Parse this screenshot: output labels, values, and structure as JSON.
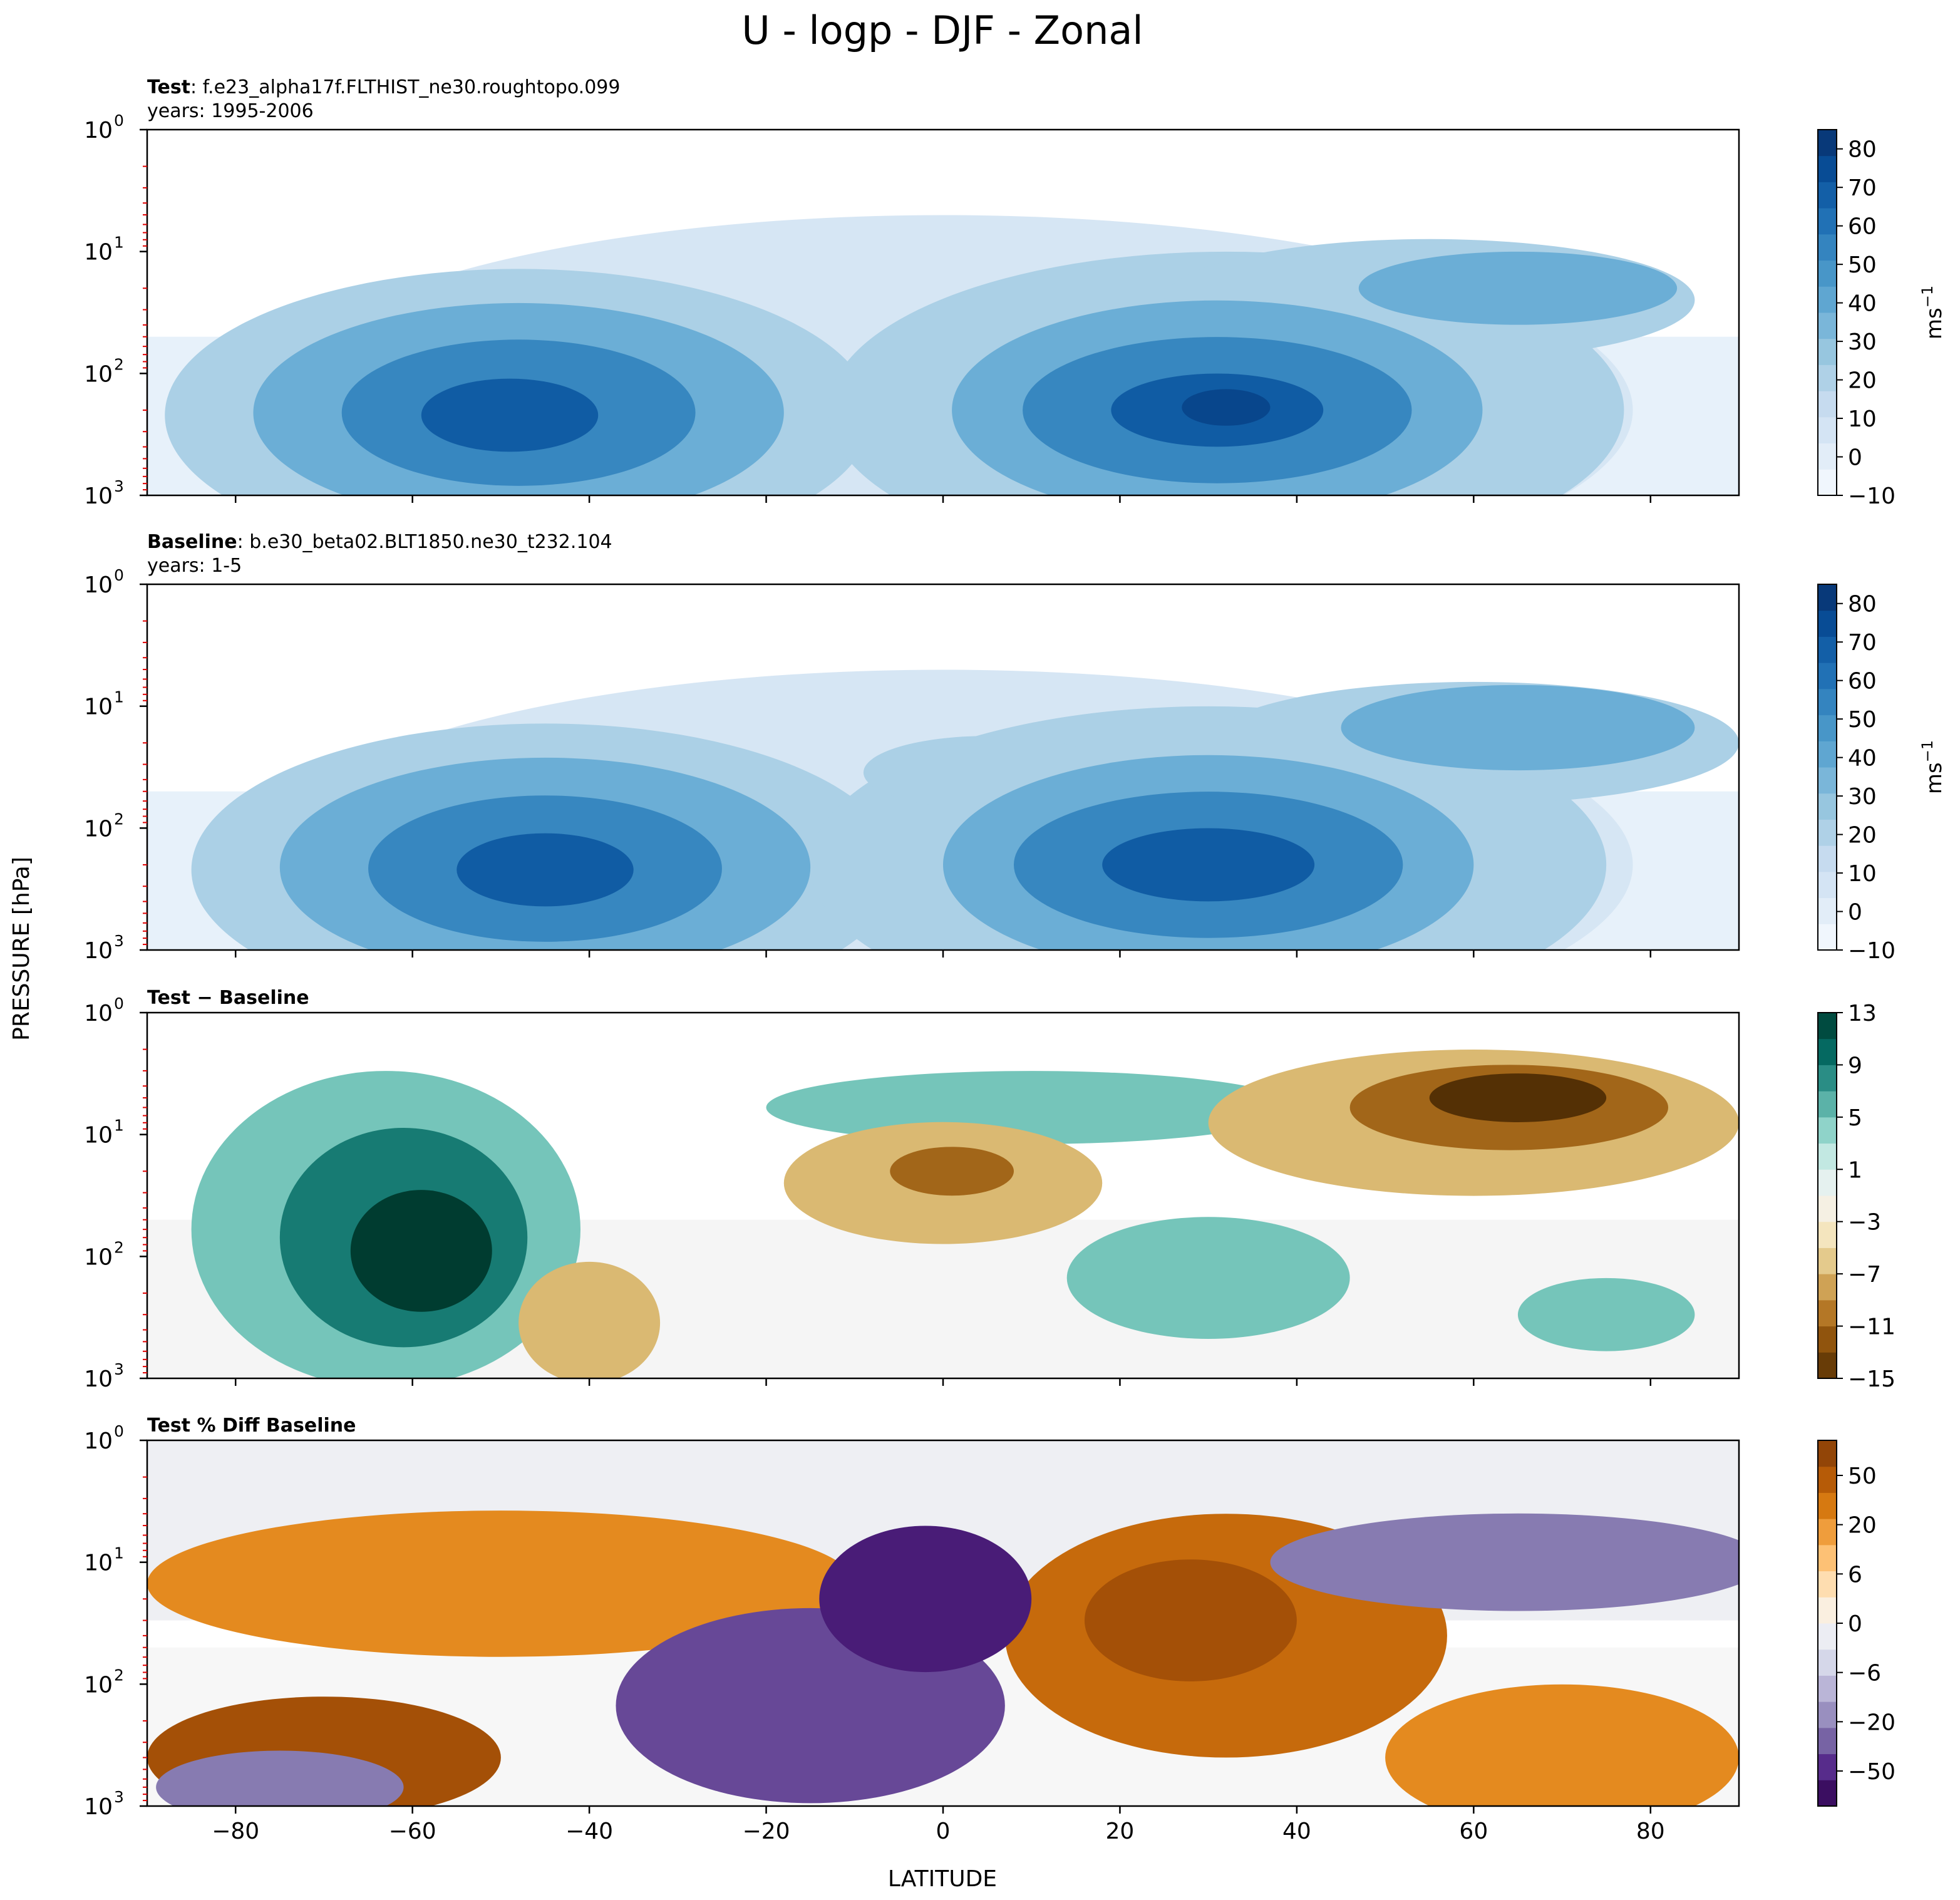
{
  "figure": {
    "title": "U - logp - DJF - Zonal",
    "xlabel": "LATITUDE",
    "ylabel": "PRESSURE [hPa]"
  },
  "chart_data": [
    {
      "type": "contour",
      "panel": "test",
      "title_bold": "Test",
      "title_rest": ": f.e23_alpha17f.FLTHIST_ne30.roughtopo.099",
      "subtitle": "years: 1995-2006",
      "xlim": [
        -90,
        90
      ],
      "ylim": [
        1000,
        1
      ],
      "yscale": "log",
      "xticks": [
        "−80",
        "−60",
        "−40",
        "−20",
        "0",
        "20",
        "40",
        "60",
        "80"
      ],
      "yticks": [
        {
          "base": "10",
          "exp": "0"
        },
        {
          "base": "10",
          "exp": "1"
        },
        {
          "base": "10",
          "exp": "2"
        },
        {
          "base": "10",
          "exp": "3"
        }
      ],
      "colorbar": {
        "ticks": [
          "80",
          "70",
          "60",
          "50",
          "40",
          "30",
          "20",
          "10",
          "0",
          "−10"
        ],
        "range": [
          -10,
          85
        ],
        "label_base": "ms",
        "label_exp": "−1",
        "cmap": "Blues"
      },
      "contours": [
        {
          "level": 2,
          "lat": 0,
          "p": 200,
          "rx": 78,
          "ry": 1.6
        },
        {
          "level": 4,
          "lat": -48,
          "p": 220,
          "rx": 40,
          "ry": 1.2
        },
        {
          "level": 4,
          "lat": 32,
          "p": 200,
          "rx": 45,
          "ry": 1.3
        },
        {
          "level": 4,
          "lat": 55,
          "p": 25,
          "rx": 30,
          "ry": 0.5
        },
        {
          "level": 6,
          "lat": -48,
          "p": 210,
          "rx": 30,
          "ry": 0.9
        },
        {
          "level": 6,
          "lat": 31,
          "p": 200,
          "rx": 30,
          "ry": 0.9
        },
        {
          "level": 6,
          "lat": 65,
          "p": 20,
          "rx": 18,
          "ry": 0.3
        },
        {
          "level": 8,
          "lat": -48,
          "p": 210,
          "rx": 20,
          "ry": 0.6
        },
        {
          "level": 8,
          "lat": 31,
          "p": 200,
          "rx": 22,
          "ry": 0.6
        },
        {
          "level": 10,
          "lat": -49,
          "p": 220,
          "rx": 10,
          "ry": 0.3
        },
        {
          "level": 10,
          "lat": 31,
          "p": 200,
          "rx": 12,
          "ry": 0.3
        },
        {
          "level": 11,
          "lat": 32,
          "p": 190,
          "rx": 5,
          "ry": 0.15
        }
      ]
    },
    {
      "type": "contour",
      "panel": "baseline",
      "title_bold": "Baseline",
      "title_rest": ": b.e30_beta02.BLT1850.ne30_t232.104",
      "subtitle": "years: 1-5",
      "xlim": [
        -90,
        90
      ],
      "ylim": [
        1000,
        1
      ],
      "yscale": "log",
      "xticks": [
        "−80",
        "−60",
        "−40",
        "−20",
        "0",
        "20",
        "40",
        "60",
        "80"
      ],
      "yticks": [
        {
          "base": "10",
          "exp": "0"
        },
        {
          "base": "10",
          "exp": "1"
        },
        {
          "base": "10",
          "exp": "2"
        },
        {
          "base": "10",
          "exp": "3"
        }
      ],
      "colorbar": {
        "ticks": [
          "80",
          "70",
          "60",
          "50",
          "40",
          "30",
          "20",
          "10",
          "0",
          "−10"
        ],
        "range": [
          -10,
          85
        ],
        "label_base": "ms",
        "label_exp": "−1",
        "cmap": "Blues"
      },
      "contours": [
        {
          "level": 2,
          "lat": 0,
          "p": 200,
          "rx": 78,
          "ry": 1.6
        },
        {
          "level": 4,
          "lat": -45,
          "p": 220,
          "rx": 40,
          "ry": 1.2
        },
        {
          "level": 4,
          "lat": 30,
          "p": 200,
          "rx": 45,
          "ry": 1.3
        },
        {
          "level": 4,
          "lat": 60,
          "p": 20,
          "rx": 30,
          "ry": 0.5
        },
        {
          "level": 4,
          "lat": 5,
          "p": 35,
          "rx": 14,
          "ry": 0.3
        },
        {
          "level": 6,
          "lat": -45,
          "p": 210,
          "rx": 30,
          "ry": 0.9
        },
        {
          "level": 6,
          "lat": 30,
          "p": 200,
          "rx": 30,
          "ry": 0.9
        },
        {
          "level": 6,
          "lat": 65,
          "p": 15,
          "rx": 20,
          "ry": 0.35
        },
        {
          "level": 8,
          "lat": -45,
          "p": 215,
          "rx": 20,
          "ry": 0.6
        },
        {
          "level": 8,
          "lat": 30,
          "p": 200,
          "rx": 22,
          "ry": 0.6
        },
        {
          "level": 10,
          "lat": -45,
          "p": 220,
          "rx": 10,
          "ry": 0.3
        },
        {
          "level": 10,
          "lat": 30,
          "p": 200,
          "rx": 12,
          "ry": 0.3
        }
      ]
    },
    {
      "type": "contour",
      "panel": "difference",
      "title_bold": "Test − Baseline",
      "title_rest": "",
      "subtitle": "",
      "xlim": [
        -90,
        90
      ],
      "ylim": [
        1000,
        1
      ],
      "yscale": "log",
      "xticks": [
        "−80",
        "−60",
        "−40",
        "−20",
        "0",
        "20",
        "40",
        "60",
        "80"
      ],
      "yticks": [
        {
          "base": "10",
          "exp": "0"
        },
        {
          "base": "10",
          "exp": "1"
        },
        {
          "base": "10",
          "exp": "2"
        },
        {
          "base": "10",
          "exp": "3"
        }
      ],
      "colorbar": {
        "ticks": [
          "13",
          "9",
          "5",
          "1",
          "−3",
          "−7",
          "−11",
          "−15"
        ],
        "range": [
          -15,
          13
        ],
        "label_base": "",
        "label_exp": "",
        "cmap": "BrBG"
      },
      "contours": [
        {
          "level": 3,
          "lat": -63,
          "p": 60,
          "rx": 22,
          "ry": 1.3
        },
        {
          "level": 5,
          "lat": -61,
          "p": 70,
          "rx": 14,
          "ry": 0.9
        },
        {
          "level": 7,
          "lat": -59,
          "p": 90,
          "rx": 8,
          "ry": 0.5
        },
        {
          "level": 3,
          "lat": 30,
          "p": 150,
          "rx": 16,
          "ry": 0.5
        },
        {
          "level": 3,
          "lat": 75,
          "p": 300,
          "rx": 10,
          "ry": 0.3
        },
        {
          "level": 3,
          "lat": 10,
          "p": 6,
          "rx": 30,
          "ry": 0.3
        },
        {
          "level": -3,
          "lat": 0,
          "p": 25,
          "rx": 18,
          "ry": 0.5
        },
        {
          "level": -5,
          "lat": 1,
          "p": 20,
          "rx": 7,
          "ry": 0.2
        },
        {
          "level": -3,
          "lat": 60,
          "p": 8,
          "rx": 30,
          "ry": 0.6
        },
        {
          "level": -5,
          "lat": 64,
          "p": 6,
          "rx": 18,
          "ry": 0.35
        },
        {
          "level": -7,
          "lat": 65,
          "p": 5,
          "rx": 10,
          "ry": 0.2
        },
        {
          "level": -3,
          "lat": -40,
          "p": 350,
          "rx": 8,
          "ry": 0.5
        }
      ]
    },
    {
      "type": "contour",
      "panel": "percent_difference",
      "title_bold": "Test % Diff Baseline",
      "title_rest": "",
      "subtitle": "",
      "xlim": [
        -90,
        90
      ],
      "ylim": [
        1000,
        1
      ],
      "yscale": "log",
      "xticks": [
        "−80",
        "−60",
        "−40",
        "−20",
        "0",
        "20",
        "40",
        "60",
        "80"
      ],
      "yticks": [
        {
          "base": "10",
          "exp": "0"
        },
        {
          "base": "10",
          "exp": "1"
        },
        {
          "base": "10",
          "exp": "2"
        },
        {
          "base": "10",
          "exp": "3"
        }
      ],
      "colorbar": {
        "ticks": [
          "50",
          "20",
          "6",
          "0",
          "−6",
          "−20",
          "−50"
        ],
        "range": [
          -70,
          70
        ],
        "label_base": "",
        "label_exp": "",
        "cmap": "PuOr_r"
      },
      "contours": [
        {
          "level": 4,
          "lat": -50,
          "p": 15,
          "rx": 40,
          "ry": 0.6
        },
        {
          "level": 6,
          "lat": -70,
          "p": 400,
          "rx": 20,
          "ry": 0.5
        },
        {
          "level": 5,
          "lat": 32,
          "p": 40,
          "rx": 25,
          "ry": 1.0
        },
        {
          "level": 6,
          "lat": 28,
          "p": 30,
          "rx": 12,
          "ry": 0.5
        },
        {
          "level": 4,
          "lat": 70,
          "p": 400,
          "rx": 20,
          "ry": 0.6
        },
        {
          "level": -4,
          "lat": 65,
          "p": 10,
          "rx": 28,
          "ry": 0.4
        },
        {
          "level": -5,
          "lat": -15,
          "p": 150,
          "rx": 22,
          "ry": 0.8
        },
        {
          "level": -6,
          "lat": -2,
          "p": 20,
          "rx": 12,
          "ry": 0.6
        },
        {
          "level": -4,
          "lat": -75,
          "p": 700,
          "rx": 14,
          "ry": 0.3
        }
      ]
    }
  ]
}
